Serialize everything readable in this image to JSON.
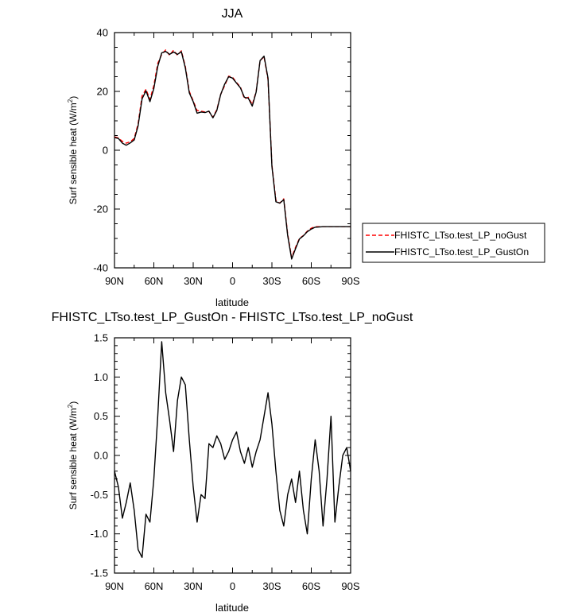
{
  "chart_data": [
    {
      "type": "line",
      "title": "JJA",
      "xlabel": "latitude",
      "ylabel_main": "Surf sensible heat (W/m",
      "ylabel_sup": "2",
      "ylabel_end": ")",
      "xlim": [
        90,
        -90
      ],
      "ylim": [
        -40,
        40
      ],
      "xticks": [
        {
          "value": 90,
          "label": "90N"
        },
        {
          "value": 60,
          "label": "60N"
        },
        {
          "value": 30,
          "label": "30N"
        },
        {
          "value": 0,
          "label": "0"
        },
        {
          "value": -30,
          "label": "30S"
        },
        {
          "value": -60,
          "label": "60S"
        },
        {
          "value": -90,
          "label": "90S"
        }
      ],
      "yticks": [
        {
          "value": 40,
          "label": "40"
        },
        {
          "value": 20,
          "label": "20"
        },
        {
          "value": 0,
          "label": "0"
        },
        {
          "value": -20,
          "label": "-20"
        },
        {
          "value": -40,
          "label": "-40"
        }
      ],
      "legend_position": "outside-right",
      "series": [
        {
          "name": "FHISTC_LTso.test_LP_noGust",
          "color": "#ff0000",
          "dash": "dashed",
          "x": [
            90,
            87,
            84,
            81,
            78,
            75,
            72,
            69,
            66,
            63,
            60,
            57,
            54,
            51,
            48,
            45,
            42,
            39,
            36,
            33,
            30,
            27,
            24,
            21,
            18,
            15,
            12,
            9,
            6,
            3,
            0,
            -3,
            -6,
            -9,
            -12,
            -15,
            -18,
            -21,
            -24,
            -27,
            -30,
            -33,
            -36,
            -39,
            -42,
            -45,
            -48,
            -51,
            -54,
            -57,
            -60,
            -63,
            -66,
            -69,
            -72,
            -75,
            -78,
            -81,
            -84,
            -87,
            -90
          ],
          "y": [
            4.5,
            4.2,
            3.0,
            2.4,
            2.9,
            4.0,
            9.0,
            18.5,
            20.7,
            17.3,
            22.0,
            29.5,
            32.6,
            34.1,
            32.3,
            34.0,
            32.3,
            33.8,
            28.5,
            20.0,
            16.8,
            13.5,
            13.3,
            13.0,
            13.2,
            11.2,
            13.8,
            19.0,
            22.0,
            25.2,
            24.8,
            23.0,
            21.5,
            17.5,
            18.0,
            15.5,
            20.0,
            30.5,
            31.8,
            24.0,
            -5.0,
            -17.0,
            -18.0,
            -16.5,
            -28.5,
            -36.5,
            -33.0,
            -30.0,
            -29.0,
            -27.5,
            -26.5,
            -26.0,
            -26.0,
            -26.0,
            -26.0,
            -26.0,
            -26.0,
            -26.0,
            -26.0,
            -26.0,
            -26.0
          ]
        },
        {
          "name": "FHISTC_LTso.test_LP_GustOn",
          "color": "#000000",
          "dash": "solid",
          "x": [
            90,
            87,
            84,
            81,
            78,
            75,
            72,
            69,
            66,
            63,
            60,
            57,
            54,
            51,
            48,
            45,
            42,
            39,
            36,
            33,
            30,
            27,
            24,
            21,
            18,
            15,
            12,
            9,
            6,
            3,
            0,
            -3,
            -6,
            -9,
            -12,
            -15,
            -18,
            -21,
            -24,
            -27,
            -30,
            -33,
            -36,
            -39,
            -42,
            -45,
            -48,
            -51,
            -54,
            -57,
            -60,
            -63,
            -66,
            -69,
            -72,
            -75,
            -78,
            -81,
            -84,
            -87,
            -90
          ],
          "y": [
            4.3,
            4.0,
            2.4,
            1.7,
            2.5,
            3.5,
            8.3,
            17.5,
            20.2,
            16.5,
            21.0,
            28.5,
            33.1,
            33.6,
            32.6,
            33.4,
            32.6,
            33.5,
            28.0,
            19.5,
            16.5,
            12.6,
            13.0,
            12.8,
            13.3,
            11.0,
            13.5,
            19.0,
            22.5,
            25.0,
            24.5,
            22.8,
            21.2,
            18.0,
            17.7,
            15.0,
            19.8,
            30.5,
            32.0,
            24.5,
            -5.5,
            -17.5,
            -18.0,
            -16.8,
            -29.0,
            -37.0,
            -33.5,
            -30.2,
            -29.1,
            -27.7,
            -26.8,
            -26.2,
            -26.1,
            -26.0,
            -26.0,
            -26.0,
            -26.0,
            -26.0,
            -26.0,
            -26.0,
            -26.0
          ]
        }
      ]
    },
    {
      "type": "line",
      "title": "FHISTC_LTso.test_LP_GustOn - FHISTC_LTso.test_LP_noGust",
      "xlabel": "latitude",
      "ylabel_main": "Surf sensible heat (W/m",
      "ylabel_sup": "2",
      "ylabel_end": ")",
      "xlim": [
        90,
        -90
      ],
      "ylim": [
        -1.5,
        1.5
      ],
      "xticks": [
        {
          "value": 90,
          "label": "90N"
        },
        {
          "value": 60,
          "label": "60N"
        },
        {
          "value": 30,
          "label": "30N"
        },
        {
          "value": 0,
          "label": "0"
        },
        {
          "value": -30,
          "label": "30S"
        },
        {
          "value": -60,
          "label": "60S"
        },
        {
          "value": -90,
          "label": "90S"
        }
      ],
      "yticks": [
        {
          "value": 1.5,
          "label": "1.5"
        },
        {
          "value": 1.0,
          "label": "1.0"
        },
        {
          "value": 0.5,
          "label": "0.5"
        },
        {
          "value": 0.0,
          "label": "0.0"
        },
        {
          "value": -0.5,
          "label": "-0.5"
        },
        {
          "value": -1.0,
          "label": "-1.0"
        },
        {
          "value": -1.5,
          "label": "-1.5"
        }
      ],
      "series": [
        {
          "color": "#000000",
          "dash": "solid",
          "x": [
            90,
            87,
            84,
            81,
            78,
            75,
            72,
            69,
            66,
            63,
            60,
            57,
            54,
            51,
            48,
            45,
            42,
            39,
            36,
            33,
            30,
            27,
            24,
            21,
            18,
            15,
            12,
            9,
            6,
            3,
            0,
            -3,
            -6,
            -9,
            -12,
            -15,
            -18,
            -21,
            -24,
            -27,
            -30,
            -33,
            -36,
            -39,
            -42,
            -45,
            -48,
            -51,
            -54,
            -57,
            -60,
            -63,
            -66,
            -69,
            -72,
            -75,
            -78,
            -81,
            -84,
            -87,
            -90
          ],
          "y": [
            -0.2,
            -0.4,
            -0.8,
            -0.6,
            -0.35,
            -0.7,
            -1.2,
            -1.3,
            -0.75,
            -0.85,
            -0.3,
            0.5,
            1.45,
            0.8,
            0.45,
            0.05,
            0.7,
            1.0,
            0.9,
            0.2,
            -0.4,
            -0.85,
            -0.5,
            -0.55,
            0.15,
            0.1,
            0.25,
            0.15,
            -0.05,
            0.05,
            0.2,
            0.3,
            0.05,
            -0.1,
            0.1,
            -0.15,
            0.05,
            0.2,
            0.5,
            0.8,
            0.4,
            -0.2,
            -0.7,
            -0.9,
            -0.5,
            -0.3,
            -0.6,
            -0.2,
            -0.7,
            -1.0,
            -0.3,
            0.2,
            -0.2,
            -0.9,
            -0.3,
            0.5,
            -0.85,
            -0.4,
            0.0,
            0.1,
            -0.2
          ]
        }
      ]
    }
  ],
  "legend": {
    "items": [
      {
        "label": "FHISTC_LTso.test_LP_noGust",
        "color": "#ff0000",
        "dash": "dashed"
      },
      {
        "label": "FHISTC_LTso.test_LP_GustOn",
        "color": "#000000",
        "dash": "solid"
      }
    ]
  }
}
